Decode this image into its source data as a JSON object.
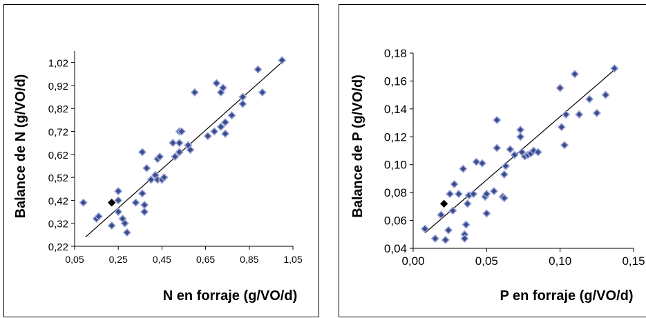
{
  "chart_data": [
    {
      "type": "scatter",
      "title": "",
      "xlabel": "N en forraje (g/VO/d)",
      "ylabel": "Balance de N (g/VO/d)",
      "xlim": [
        0.05,
        1.05
      ],
      "ylim": [
        0.22,
        1.07
      ],
      "x_ticks": [
        "0,05",
        "0,25",
        "0,45",
        "0,65",
        "0,85",
        "1,05"
      ],
      "y_ticks": [
        "0,22",
        "0,32",
        "0,42",
        "0,52",
        "0,62",
        "0,72",
        "0,82",
        "0,92",
        "1,02"
      ],
      "marker_color": "#3a4a8c",
      "marker_edge": "#9aa6d6",
      "highlight_color": "#000000",
      "trendline": [
        [
          0.1,
          0.26
        ],
        [
          1.01,
          1.03
        ]
      ],
      "highlight": [
        0.22,
        0.41
      ],
      "points": [
        [
          0.09,
          0.41
        ],
        [
          0.15,
          0.34
        ],
        [
          0.16,
          0.35
        ],
        [
          0.22,
          0.31
        ],
        [
          0.25,
          0.46
        ],
        [
          0.25,
          0.42
        ],
        [
          0.25,
          0.37
        ],
        [
          0.27,
          0.34
        ],
        [
          0.28,
          0.32
        ],
        [
          0.29,
          0.28
        ],
        [
          0.33,
          0.41
        ],
        [
          0.36,
          0.63
        ],
        [
          0.36,
          0.45
        ],
        [
          0.37,
          0.4
        ],
        [
          0.37,
          0.37
        ],
        [
          0.38,
          0.56
        ],
        [
          0.4,
          0.51
        ],
        [
          0.42,
          0.53
        ],
        [
          0.43,
          0.51
        ],
        [
          0.43,
          0.6
        ],
        [
          0.44,
          0.61
        ],
        [
          0.45,
          0.51
        ],
        [
          0.46,
          0.52
        ],
        [
          0.5,
          0.67
        ],
        [
          0.51,
          0.61
        ],
        [
          0.53,
          0.63
        ],
        [
          0.53,
          0.67
        ],
        [
          0.53,
          0.72
        ],
        [
          0.54,
          0.72
        ],
        [
          0.57,
          0.66
        ],
        [
          0.58,
          0.64
        ],
        [
          0.6,
          0.89
        ],
        [
          0.66,
          0.7
        ],
        [
          0.69,
          0.72
        ],
        [
          0.7,
          0.93
        ],
        [
          0.72,
          0.74
        ],
        [
          0.72,
          0.89
        ],
        [
          0.73,
          0.91
        ],
        [
          0.74,
          0.71
        ],
        [
          0.74,
          0.76
        ],
        [
          0.77,
          0.79
        ],
        [
          0.82,
          0.87
        ],
        [
          0.82,
          0.84
        ],
        [
          0.89,
          0.99
        ],
        [
          0.91,
          0.89
        ],
        [
          1.0,
          1.03
        ]
      ]
    },
    {
      "type": "scatter",
      "title": "",
      "xlabel": "P en forraje (g/VO/d)",
      "ylabel": "Balance de P (g/VO/d)",
      "xlim": [
        0.0,
        0.15
      ],
      "ylim": [
        0.04,
        0.18
      ],
      "x_ticks": [
        "0,00",
        "0,05",
        "0,10",
        "0,15"
      ],
      "y_ticks": [
        "0,04",
        "0,06",
        "0,08",
        "0,10",
        "0,12",
        "0,14",
        "0,16",
        "0,18"
      ],
      "marker_color": "#3a4a8c",
      "marker_edge": "#9aa6d6",
      "highlight_color": "#000000",
      "trendline": [
        [
          0.008,
          0.051
        ],
        [
          0.137,
          0.168
        ]
      ],
      "highlight": [
        0.021,
        0.072
      ],
      "points": [
        [
          0.008,
          0.054
        ],
        [
          0.015,
          0.047
        ],
        [
          0.019,
          0.064
        ],
        [
          0.022,
          0.046
        ],
        [
          0.024,
          0.053
        ],
        [
          0.025,
          0.079
        ],
        [
          0.027,
          0.067
        ],
        [
          0.028,
          0.086
        ],
        [
          0.031,
          0.079
        ],
        [
          0.034,
          0.097
        ],
        [
          0.035,
          0.05
        ],
        [
          0.035,
          0.047
        ],
        [
          0.036,
          0.057
        ],
        [
          0.037,
          0.072
        ],
        [
          0.038,
          0.078
        ],
        [
          0.041,
          0.079
        ],
        [
          0.043,
          0.102
        ],
        [
          0.047,
          0.101
        ],
        [
          0.049,
          0.077
        ],
        [
          0.05,
          0.065
        ],
        [
          0.05,
          0.079
        ],
        [
          0.055,
          0.081
        ],
        [
          0.057,
          0.112
        ],
        [
          0.057,
          0.132
        ],
        [
          0.061,
          0.077
        ],
        [
          0.062,
          0.076
        ],
        [
          0.062,
          0.093
        ],
        [
          0.063,
          0.099
        ],
        [
          0.066,
          0.111
        ],
        [
          0.069,
          0.107
        ],
        [
          0.073,
          0.12
        ],
        [
          0.073,
          0.125
        ],
        [
          0.074,
          0.109
        ],
        [
          0.076,
          0.106
        ],
        [
          0.078,
          0.107
        ],
        [
          0.08,
          0.108
        ],
        [
          0.082,
          0.11
        ],
        [
          0.085,
          0.109
        ],
        [
          0.1,
          0.155
        ],
        [
          0.101,
          0.127
        ],
        [
          0.103,
          0.114
        ],
        [
          0.104,
          0.136
        ],
        [
          0.11,
          0.165
        ],
        [
          0.113,
          0.136
        ],
        [
          0.12,
          0.147
        ],
        [
          0.125,
          0.137
        ],
        [
          0.131,
          0.15
        ],
        [
          0.137,
          0.169
        ]
      ]
    }
  ]
}
